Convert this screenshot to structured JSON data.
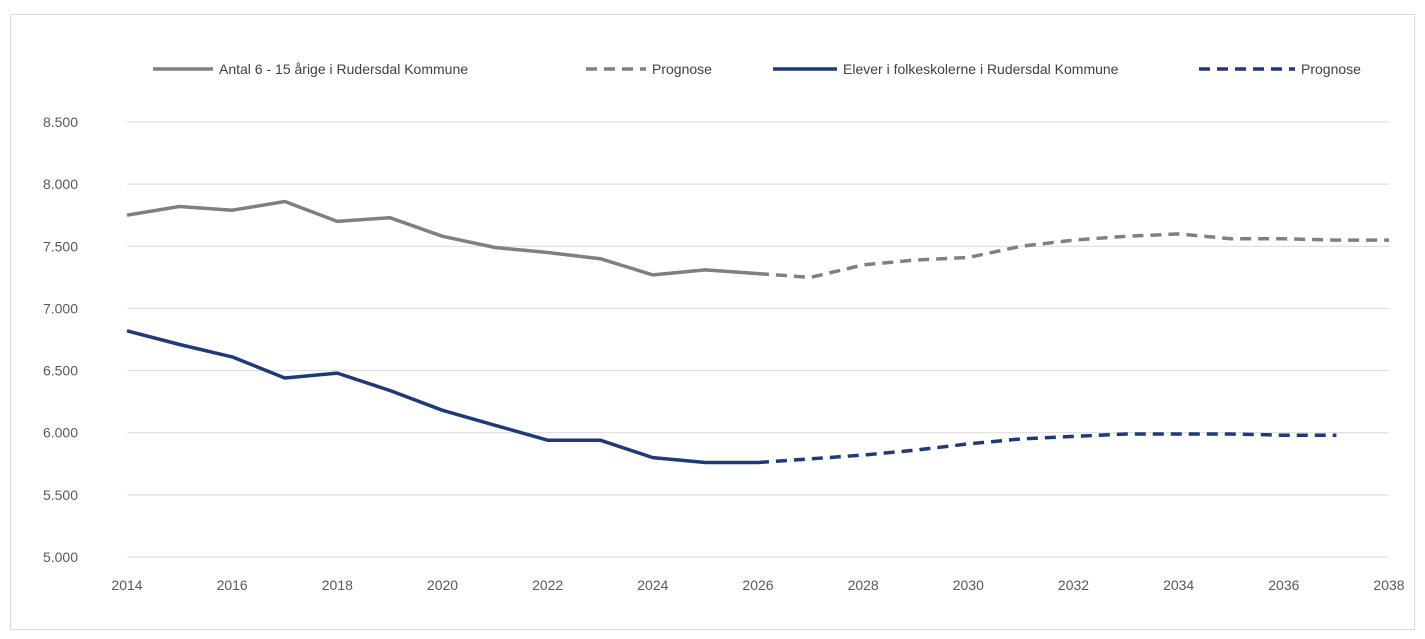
{
  "chart_data": {
    "type": "line",
    "title": "",
    "xlabel": "",
    "ylabel": "",
    "xlim": [
      2014,
      2038
    ],
    "ylim": [
      5000,
      8500
    ],
    "x_ticks": [
      2014,
      2016,
      2018,
      2020,
      2022,
      2024,
      2026,
      2028,
      2030,
      2032,
      2034,
      2036,
      2038
    ],
    "x_tick_labels": [
      "2014",
      "2016",
      "2018",
      "2020",
      "2022",
      "2024",
      "2026",
      "2028",
      "2030",
      "2032",
      "2034",
      "2036",
      "2038"
    ],
    "y_ticks": [
      5000,
      5500,
      6000,
      6500,
      7000,
      7500,
      8000,
      8500
    ],
    "y_tick_labels": [
      "5.000",
      "5.500",
      "6.000",
      "6.500",
      "7.000",
      "7.500",
      "8.000",
      "8.500"
    ],
    "grid": true,
    "legend_position": "top",
    "series": [
      {
        "name": "Antal 6 - 15 årige i Rudersdal Kommune",
        "color": "#808080",
        "dashed": false,
        "x": [
          2014,
          2015,
          2016,
          2017,
          2018,
          2019,
          2020,
          2021,
          2022,
          2023,
          2024,
          2025,
          2026
        ],
        "values": [
          7750,
          7820,
          7790,
          7860,
          7700,
          7730,
          7580,
          7490,
          7450,
          7400,
          7270,
          7310,
          7280
        ]
      },
      {
        "name": "Prognose",
        "color": "#808080",
        "dashed": true,
        "x": [
          2026,
          2027,
          2028,
          2029,
          2030,
          2031,
          2032,
          2033,
          2034,
          2035,
          2036,
          2037,
          2038
        ],
        "values": [
          7280,
          7250,
          7350,
          7390,
          7410,
          7500,
          7550,
          7580,
          7600,
          7560,
          7560,
          7550,
          7550
        ]
      },
      {
        "name": "Elever i folkeskolerne i Rudersdal Kommune",
        "color": "#1f3a7a",
        "dashed": false,
        "x": [
          2014,
          2015,
          2016,
          2017,
          2018,
          2019,
          2020,
          2021,
          2022,
          2023,
          2024,
          2025,
          2026
        ],
        "values": [
          6820,
          6710,
          6610,
          6440,
          6480,
          6340,
          6180,
          6060,
          5940,
          5940,
          5800,
          5760,
          5760
        ]
      },
      {
        "name": "Prognose",
        "color": "#1f3a7a",
        "dashed": true,
        "x": [
          2026,
          2027,
          2028,
          2029,
          2030,
          2031,
          2032,
          2033,
          2034,
          2035,
          2036,
          2037
        ],
        "values": [
          5760,
          5790,
          5820,
          5860,
          5910,
          5950,
          5970,
          5990,
          5990,
          5990,
          5980,
          5980
        ]
      }
    ]
  }
}
